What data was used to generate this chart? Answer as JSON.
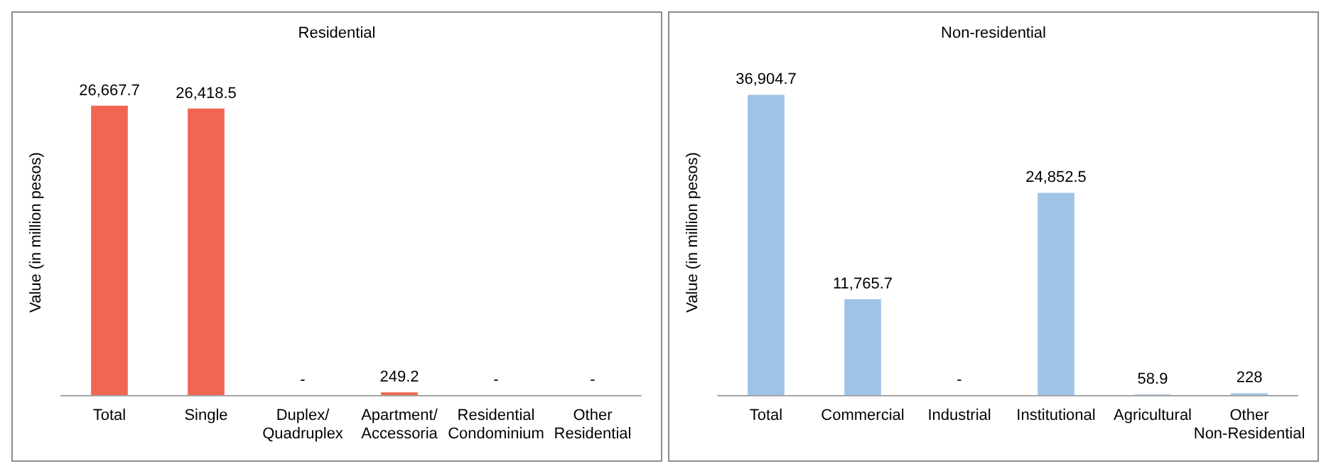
{
  "chart_data": [
    {
      "type": "bar",
      "title": "Residential",
      "ylabel": "Value (in million pesos)",
      "categories": [
        "Total",
        "Single",
        "Duplex/\nQuadruplex",
        "Apartment/\nAccessoria",
        "Residential\nCondominium",
        "Other\nResidential"
      ],
      "values": [
        26667.7,
        26418.5,
        0,
        249.2,
        0,
        0
      ],
      "value_labels": [
        "26,667.7",
        "26,418.5",
        "-",
        "249.2",
        "-",
        "-"
      ],
      "color": "#f26552",
      "grid": false,
      "tick_labels": "x"
    },
    {
      "type": "bar",
      "title": "Non-residential",
      "ylabel": "Value (in million pesos)",
      "categories": [
        "Total",
        "Commercial",
        "Industrial",
        "Institutional",
        "Agricultural",
        "Other\nNon-Residential"
      ],
      "values": [
        36904.7,
        11765.7,
        0,
        24852.5,
        58.9,
        228
      ],
      "value_labels": [
        "36,904.7",
        "11,765.7",
        "-",
        "24,852.5",
        "58.9",
        "228"
      ],
      "color": "#9dc3e6",
      "grid": false,
      "tick_labels": "x"
    }
  ]
}
